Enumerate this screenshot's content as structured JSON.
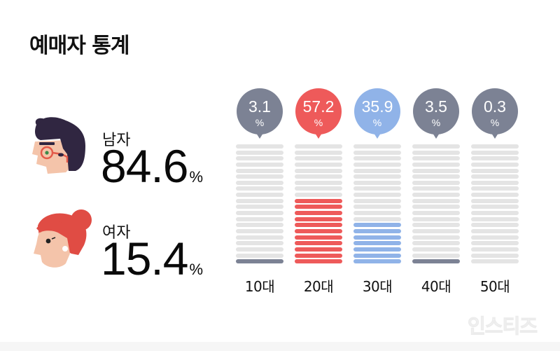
{
  "title": "예매자 통계",
  "gender": {
    "male": {
      "label": "남자",
      "value": "84.6",
      "unit": "%"
    },
    "female": {
      "label": "여자",
      "value": "15.4",
      "unit": "%"
    }
  },
  "ages": [
    {
      "label": "10대",
      "value": "3.1",
      "unit": "%",
      "filled_bars": 1,
      "color": "#7c8294"
    },
    {
      "label": "20대",
      "value": "57.2",
      "unit": "%",
      "filled_bars": 11,
      "color": "#ee5a5a"
    },
    {
      "label": "30대",
      "value": "35.9",
      "unit": "%",
      "filled_bars": 7,
      "color": "#90b3e8"
    },
    {
      "label": "40대",
      "value": "3.5",
      "unit": "%",
      "filled_bars": 1,
      "color": "#7c8294"
    },
    {
      "label": "50대",
      "value": "0.3",
      "unit": "%",
      "filled_bars": 0,
      "color": "#7c8294"
    }
  ],
  "bars_per_column": 20,
  "empty_bar_color": "#e4e4e4",
  "watermark": "인스티즈",
  "chart_data": [
    {
      "type": "pie",
      "title": "예매자 통계 - 성별",
      "categories": [
        "남자",
        "여자"
      ],
      "values": [
        84.6,
        15.4
      ],
      "unit": "%"
    },
    {
      "type": "bar",
      "title": "예매자 통계 - 연령",
      "categories": [
        "10대",
        "20대",
        "30대",
        "40대",
        "50대"
      ],
      "values": [
        3.1,
        57.2,
        35.9,
        3.5,
        0.3
      ],
      "unit": "%",
      "colors": [
        "#7c8294",
        "#ee5a5a",
        "#90b3e8",
        "#7c8294",
        "#7c8294"
      ],
      "xlabel": "",
      "ylabel": "",
      "grid": false,
      "legend": "none"
    }
  ]
}
